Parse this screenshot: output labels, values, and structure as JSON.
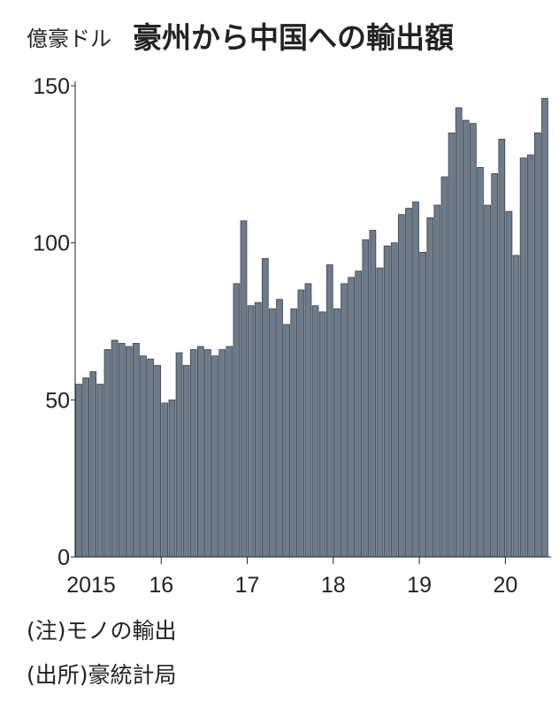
{
  "chart_data": {
    "type": "bar",
    "title": "豪州から中国への輸出額",
    "y_label": "億豪ドル",
    "categories": [
      "2015",
      null,
      null,
      null,
      null,
      null,
      null,
      null,
      null,
      null,
      null,
      null,
      "16",
      null,
      null,
      null,
      null,
      null,
      null,
      null,
      null,
      null,
      null,
      null,
      "17",
      null,
      null,
      null,
      null,
      null,
      null,
      null,
      null,
      null,
      null,
      null,
      "18",
      null,
      null,
      null,
      null,
      null,
      null,
      null,
      null,
      null,
      null,
      null,
      "19",
      null,
      null,
      null,
      null,
      null,
      null,
      null,
      null,
      null,
      null,
      null,
      "20",
      null,
      null,
      null,
      null,
      null
    ],
    "values": [
      55,
      57,
      59,
      55,
      66,
      69,
      68,
      67,
      68,
      64,
      63,
      61,
      49,
      50,
      65,
      61,
      66,
      67,
      66,
      64,
      66,
      67,
      87,
      107,
      80,
      81,
      95,
      79,
      82,
      74,
      79,
      85,
      87,
      80,
      78,
      93,
      79,
      87,
      89,
      91,
      101,
      104,
      92,
      99,
      100,
      109,
      111,
      113,
      97,
      108,
      112,
      121,
      135,
      143,
      139,
      138,
      124,
      112,
      122,
      133,
      110,
      96,
      127,
      128,
      135,
      146
    ],
    "color": "#6e7b8a",
    "ylim": [
      0,
      150
    ],
    "yticks": [
      0,
      50,
      100,
      150
    ],
    "notes": [
      "(注)モノの輸出",
      "(出所)豪統計局"
    ]
  }
}
